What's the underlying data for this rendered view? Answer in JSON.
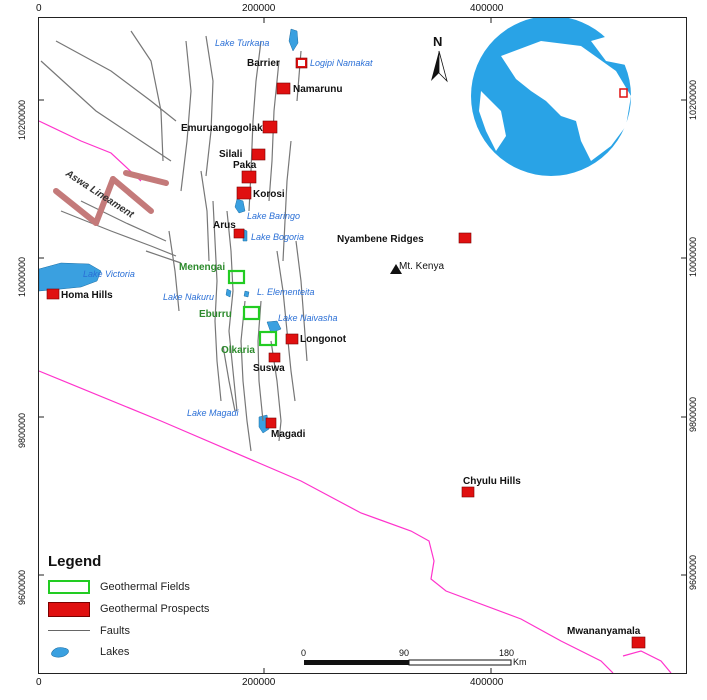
{
  "top_axis": [
    "0",
    "200000",
    "400000"
  ],
  "bottom_axis": [
    "0",
    "200000",
    "400000"
  ],
  "left_axis": [
    "10200000",
    "10000000",
    "9800000",
    "9600000"
  ],
  "right_axis": [
    "10200000",
    "10000000",
    "9800000",
    "9600000"
  ],
  "north_label": "N",
  "prospects": [
    {
      "name": "Barrier"
    },
    {
      "name": "Namarunu"
    },
    {
      "name": "Emuruangogolak"
    },
    {
      "name": "Silali"
    },
    {
      "name": "Paka"
    },
    {
      "name": "Korosi"
    },
    {
      "name": "Arus"
    },
    {
      "name": "Nyambene Ridges"
    },
    {
      "name": "Homa Hills"
    },
    {
      "name": "Longonot"
    },
    {
      "name": "Suswa"
    },
    {
      "name": "Magadi"
    },
    {
      "name": "Chyulu Hills"
    },
    {
      "name": "Mwananyamala"
    }
  ],
  "fields": [
    {
      "name": "Menengai"
    },
    {
      "name": "Eburru"
    },
    {
      "name": "Olkaria"
    }
  ],
  "lakes": [
    "Lake Turkana",
    "Logipi Namakat",
    "Lake Baringo",
    "Lake Bogoria",
    "Lake Victoria",
    "Lake Nakuru",
    "L. Elementeita",
    "Lake Naivasha",
    "Lake Magadi"
  ],
  "mountain": "Mt. Kenya",
  "lineament": "Aswa Lineament",
  "legend": {
    "title": "Legend",
    "items": [
      {
        "label": "Geothermal Fields"
      },
      {
        "label": "Geothermal Prospects"
      },
      {
        "label": "Faults"
      },
      {
        "label": "Lakes"
      }
    ]
  },
  "scalebar": {
    "ticks": [
      "0",
      "90",
      "180"
    ],
    "unit": "Km"
  },
  "colors": {
    "prospect": "#e01010",
    "field": "#22cc22",
    "border": "#ff33cc",
    "lake": "#3aa0e0",
    "fault": "#777777",
    "lineament": "#c47a7a",
    "globe": "#29a3e6"
  }
}
